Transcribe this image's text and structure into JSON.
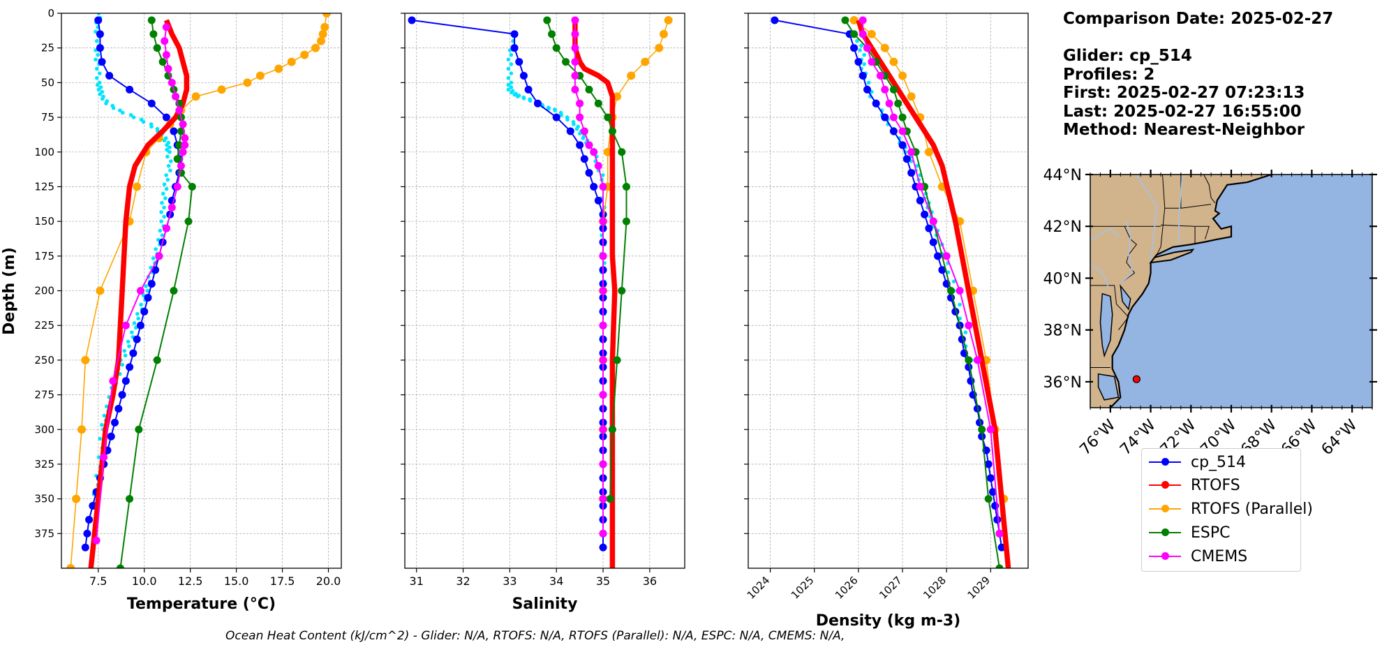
{
  "footer": "Ocean Heat Content (kJ/cm^2) - Glider: N/A,  RTOFS: N/A,  RTOFS (Parallel): N/A,  ESPC: N/A,  CMEMS: N/A,",
  "info": {
    "date": "Comparison Date: 2025-02-27",
    "glider": "Glider: cp_514",
    "profiles": "Profiles: 2",
    "first": "First: 2025-02-27 07:23:13",
    "last": "Last: 2025-02-27 16:55:00",
    "method": "Method: Nearest-Neighbor"
  },
  "legend": [
    {
      "name": "cp_514",
      "color": "#0000ff"
    },
    {
      "name": "RTOFS",
      "color": "#ff0000"
    },
    {
      "name": "RTOFS (Parallel)",
      "color": "#ffa500"
    },
    {
      "name": "ESPC",
      "color": "#008000"
    },
    {
      "name": "CMEMS",
      "color": "#ff00ff"
    }
  ],
  "colors": {
    "glider_raw": "#00e5ff",
    "land": "#d2b48c",
    "ocean": "#94b4e2",
    "rivers": "#a6c1e0",
    "marker": "#ff0000"
  },
  "chart_data": [
    {
      "type": "line",
      "xlabel": "Temperature (°C)",
      "ylabel": "Depth (m)",
      "xlim": [
        5.5,
        20.7
      ],
      "ylim": [
        400,
        0
      ],
      "xticks": [
        "7.5",
        "10.0",
        "12.5",
        "15.0",
        "17.5",
        "20.0"
      ],
      "yticks": [
        "0",
        "25",
        "50",
        "75",
        "100",
        "125",
        "150",
        "175",
        "200",
        "225",
        "250",
        "275",
        "300",
        "325",
        "350",
        "375"
      ],
      "grid": true,
      "glider_raw": {
        "x": [
          7.6,
          7.4,
          7.5,
          7.4,
          7.5,
          7.5,
          7.6,
          7.7,
          8.0,
          8.6,
          9.5,
          10.3,
          10.8,
          11.1,
          11.3,
          11.3,
          11.4,
          11.2,
          11.1,
          11.0,
          11.0,
          10.9,
          10.7,
          10.5,
          10.3,
          10.1,
          9.9,
          9.6,
          9.4,
          9.1,
          8.8,
          8.6,
          8.3,
          8.1,
          7.9,
          7.7,
          7.6,
          7.4,
          7.2
        ],
        "y": [
          0,
          10,
          20,
          30,
          40,
          50,
          55,
          60,
          65,
          70,
          75,
          80,
          85,
          90,
          95,
          100,
          110,
          120,
          130,
          140,
          150,
          160,
          170,
          180,
          190,
          200,
          210,
          220,
          230,
          240,
          250,
          260,
          270,
          280,
          290,
          300,
          320,
          340,
          360
        ]
      },
      "series": [
        {
          "name": "cp_514",
          "x": [
            7.5,
            7.6,
            7.6,
            7.7,
            8.1,
            9.2,
            10.4,
            11.2,
            11.6,
            11.8,
            11.9,
            11.9,
            11.7,
            11.5,
            11.4,
            11.2,
            11.0,
            10.8,
            10.6,
            10.4,
            10.2,
            10.0,
            9.8,
            9.6,
            9.4,
            9.2,
            9.0,
            8.8,
            8.6,
            8.4,
            8.2,
            8.0,
            7.8,
            7.6,
            7.4,
            7.2,
            7.0,
            6.9,
            6.8
          ],
          "y": [
            5,
            15,
            25,
            35,
            45,
            55,
            65,
            75,
            85,
            95,
            105,
            115,
            125,
            135,
            145,
            155,
            165,
            175,
            185,
            195,
            205,
            215,
            225,
            235,
            245,
            255,
            265,
            275,
            285,
            295,
            305,
            315,
            325,
            335,
            345,
            355,
            365,
            375,
            385
          ]
        },
        {
          "name": "RTOFS",
          "x": [
            11.2,
            11.5,
            11.9,
            12.1,
            12.3,
            12.3,
            12.1,
            11.7,
            11.0,
            10.2,
            9.5,
            9.2,
            9.0,
            8.9,
            8.8,
            8.7,
            8.6,
            8.3,
            7.9,
            7.5,
            7.1
          ],
          "y": [
            5,
            15,
            25,
            35,
            45,
            55,
            65,
            75,
            85,
            95,
            110,
            125,
            150,
            175,
            200,
            225,
            250,
            275,
            300,
            350,
            400
          ]
        },
        {
          "name": "RTOFS (Parallel)",
          "x": [
            19.9,
            19.8,
            19.7,
            19.6,
            19.3,
            18.7,
            18.0,
            17.3,
            16.3,
            15.6,
            14.2,
            12.8,
            12.0,
            11.4,
            10.8,
            10.1,
            9.6,
            9.2,
            7.6,
            6.8,
            6.6,
            6.3,
            6.0
          ],
          "y": [
            0,
            10,
            15,
            20,
            25,
            30,
            35,
            40,
            45,
            50,
            55,
            60,
            70,
            80,
            90,
            100,
            125,
            150,
            200,
            250,
            300,
            350,
            400
          ]
        },
        {
          "name": "ESPC",
          "x": [
            10.4,
            10.5,
            10.7,
            11.0,
            11.3,
            11.6,
            11.9,
            12.0,
            12.0,
            11.9,
            11.8,
            12.0,
            12.6,
            12.4,
            11.6,
            10.7,
            9.7,
            9.2,
            8.7
          ],
          "y": [
            5,
            15,
            25,
            35,
            45,
            55,
            65,
            75,
            85,
            95,
            105,
            115,
            125,
            150,
            200,
            250,
            300,
            350,
            400
          ]
        },
        {
          "name": "CMEMS",
          "x": [
            11.2,
            11.1,
            11.2,
            11.3,
            11.5,
            11.7,
            11.9,
            12.1,
            12.2,
            12.2,
            12.1,
            12.0,
            11.8,
            11.5,
            11.2,
            10.8,
            9.8,
            9.0,
            8.3,
            7.8,
            7.4
          ],
          "y": [
            10,
            20,
            30,
            40,
            50,
            60,
            70,
            80,
            90,
            95,
            100,
            110,
            125,
            140,
            155,
            175,
            200,
            225,
            265,
            320,
            380
          ]
        }
      ]
    },
    {
      "type": "line",
      "xlabel": "Salinity",
      "ylim": [
        400,
        0
      ],
      "xlim": [
        30.75,
        36.75
      ],
      "xticks": [
        "31",
        "32",
        "33",
        "34",
        "35",
        "36"
      ],
      "grid": true,
      "glider_raw": {
        "x": [
          33.1,
          33.0,
          33.0,
          33.0,
          33.0,
          33.1,
          33.2,
          33.4,
          33.6,
          33.8,
          34.0,
          34.2,
          34.4,
          34.5,
          34.6,
          34.7,
          34.8,
          34.9,
          35.0,
          35.0,
          35.0,
          35.0,
          35.0,
          35.0
        ],
        "y": [
          20,
          30,
          40,
          50,
          55,
          58,
          60,
          62,
          65,
          68,
          70,
          75,
          80,
          85,
          90,
          95,
          100,
          110,
          120,
          140,
          160,
          180,
          200,
          250
        ]
      },
      "series": [
        {
          "name": "cp_514",
          "x": [
            30.9,
            33.1,
            33.1,
            33.2,
            33.3,
            33.4,
            33.6,
            34.0,
            34.3,
            34.5,
            34.6,
            34.7,
            34.8,
            34.9,
            35.0,
            35.0,
            35.0,
            35.0,
            35.0,
            35.0,
            35.0,
            35.0,
            35.0,
            35.0,
            35.0,
            35.0,
            35.0,
            35.0,
            35.0,
            35.0,
            35.0,
            35.0,
            35.0,
            35.0,
            35.0,
            35.0,
            35.0,
            35.0,
            35.0
          ],
          "y": [
            5,
            15,
            25,
            35,
            45,
            55,
            65,
            75,
            85,
            95,
            105,
            115,
            125,
            135,
            145,
            155,
            165,
            175,
            185,
            195,
            205,
            215,
            225,
            235,
            245,
            255,
            265,
            275,
            285,
            295,
            305,
            315,
            325,
            335,
            345,
            355,
            365,
            375,
            385
          ]
        },
        {
          "name": "RTOFS",
          "x": [
            34.4,
            34.4,
            34.4,
            34.5,
            34.6,
            34.9,
            35.1,
            35.2,
            35.2,
            35.2,
            35.2,
            35.2,
            35.2,
            35.25,
            35.2,
            35.2,
            35.2,
            35.2
          ],
          "y": [
            5,
            15,
            25,
            35,
            40,
            45,
            50,
            60,
            75,
            100,
            125,
            150,
            175,
            200,
            250,
            300,
            350,
            400
          ]
        },
        {
          "name": "RTOFS (Parallel)",
          "x": [
            36.4,
            36.3,
            36.2,
            35.9,
            35.6,
            35.3,
            35.2,
            35.1,
            35.1,
            35.0,
            35.0,
            35.0,
            35.0,
            35.0
          ],
          "y": [
            5,
            15,
            25,
            35,
            45,
            60,
            75,
            100,
            125,
            150,
            200,
            250,
            300,
            350
          ]
        },
        {
          "name": "ESPC",
          "x": [
            33.8,
            33.9,
            34.0,
            34.2,
            34.5,
            34.7,
            34.9,
            35.1,
            35.2,
            35.4,
            35.5,
            35.5,
            35.4,
            35.3,
            35.2,
            35.15
          ],
          "y": [
            5,
            15,
            25,
            35,
            45,
            55,
            65,
            75,
            85,
            100,
            125,
            150,
            200,
            250,
            300,
            350
          ]
        },
        {
          "name": "CMEMS",
          "x": [
            34.4,
            34.4,
            34.4,
            34.4,
            34.4,
            34.4,
            34.5,
            34.5,
            34.6,
            34.7,
            34.8,
            34.9,
            35.0,
            35.0,
            35.0,
            35.0,
            35.0,
            35.0,
            35.0,
            35.0,
            35.0,
            35.0,
            35.0
          ],
          "y": [
            5,
            15,
            25,
            35,
            45,
            55,
            65,
            75,
            85,
            95,
            100,
            110,
            125,
            150,
            175,
            200,
            225,
            250,
            275,
            300,
            325,
            350,
            375
          ]
        }
      ]
    },
    {
      "type": "line",
      "xlabel": "Density (kg m-3)",
      "ylim": [
        400,
        0
      ],
      "xlim": [
        1023.5,
        1029.85
      ],
      "xticks": [
        "1024",
        "1025",
        "1026",
        "1027",
        "1028",
        "1029"
      ],
      "grid": true,
      "glider_raw": {
        "x": [
          1026.0,
          1026.1,
          1026.1,
          1026.2,
          1026.3,
          1026.5,
          1026.7,
          1026.9,
          1027.1,
          1027.3,
          1027.4,
          1027.5,
          1027.6,
          1027.7,
          1027.8,
          1028.0,
          1028.2,
          1028.4,
          1028.6
        ],
        "y": [
          20,
          30,
          40,
          50,
          60,
          70,
          80,
          90,
          100,
          110,
          120,
          130,
          140,
          150,
          160,
          180,
          200,
          230,
          260
        ]
      },
      "series": [
        {
          "name": "cp_514",
          "x": [
            1024.1,
            1025.8,
            1025.9,
            1026.0,
            1026.1,
            1026.2,
            1026.4,
            1026.6,
            1026.8,
            1027.0,
            1027.1,
            1027.2,
            1027.3,
            1027.4,
            1027.5,
            1027.6,
            1027.7,
            1027.8,
            1027.9,
            1028.0,
            1028.1,
            1028.2,
            1028.3,
            1028.35,
            1028.4,
            1028.5,
            1028.55,
            1028.6,
            1028.7,
            1028.75,
            1028.8,
            1028.9,
            1028.95,
            1029.0,
            1029.05,
            1029.1,
            1029.15,
            1029.2,
            1029.25
          ],
          "y": [
            5,
            15,
            25,
            35,
            45,
            55,
            65,
            75,
            85,
            95,
            105,
            115,
            125,
            135,
            145,
            155,
            165,
            175,
            185,
            195,
            205,
            215,
            225,
            235,
            245,
            255,
            265,
            275,
            285,
            295,
            305,
            315,
            325,
            335,
            345,
            355,
            365,
            375,
            385
          ]
        },
        {
          "name": "RTOFS",
          "x": [
            1026.0,
            1026.1,
            1026.3,
            1026.5,
            1026.7,
            1026.9,
            1027.1,
            1027.3,
            1027.5,
            1027.7,
            1027.9,
            1028.2,
            1028.5,
            1028.8,
            1029.1,
            1029.4
          ],
          "y": [
            5,
            15,
            25,
            35,
            45,
            55,
            65,
            75,
            85,
            95,
            110,
            150,
            200,
            250,
            300,
            400
          ]
        },
        {
          "name": "RTOFS (Parallel)",
          "x": [
            1025.9,
            1026.3,
            1026.6,
            1026.8,
            1027.0,
            1027.2,
            1027.4,
            1027.6,
            1027.9,
            1028.3,
            1028.6,
            1028.9,
            1029.1,
            1029.3
          ],
          "y": [
            5,
            15,
            25,
            35,
            45,
            60,
            75,
            100,
            125,
            150,
            200,
            250,
            300,
            350
          ]
        },
        {
          "name": "ESPC",
          "x": [
            1025.7,
            1025.9,
            1026.2,
            1026.4,
            1026.6,
            1026.8,
            1026.9,
            1027.0,
            1027.1,
            1027.3,
            1027.5,
            1027.7,
            1028.1,
            1028.5,
            1028.8,
            1028.95,
            1029.2
          ],
          "y": [
            5,
            15,
            25,
            35,
            45,
            55,
            65,
            75,
            85,
            100,
            125,
            150,
            200,
            250,
            300,
            350,
            400
          ]
        },
        {
          "name": "CMEMS",
          "x": [
            1026.1,
            1026.1,
            1026.2,
            1026.3,
            1026.5,
            1026.6,
            1026.7,
            1026.8,
            1027.0,
            1027.2,
            1027.4,
            1027.7,
            1028.0,
            1028.3,
            1028.5,
            1028.7,
            1029.0,
            1029.2
          ],
          "y": [
            5,
            15,
            25,
            35,
            45,
            55,
            65,
            75,
            85,
            100,
            125,
            150,
            175,
            200,
            225,
            250,
            300,
            375
          ]
        }
      ]
    }
  ],
  "map": {
    "lat_ticks": [
      "44°N",
      "42°N",
      "40°N",
      "38°N",
      "36°N"
    ],
    "lon_ticks": [
      "76°W",
      "74°W",
      "72°W",
      "70°W",
      "68°W",
      "66°W",
      "64°W"
    ],
    "extent": {
      "lon": [
        -77,
        -63
      ],
      "lat": [
        35,
        44
      ]
    },
    "marker": {
      "lon": -74.7,
      "lat": 36.1
    }
  }
}
